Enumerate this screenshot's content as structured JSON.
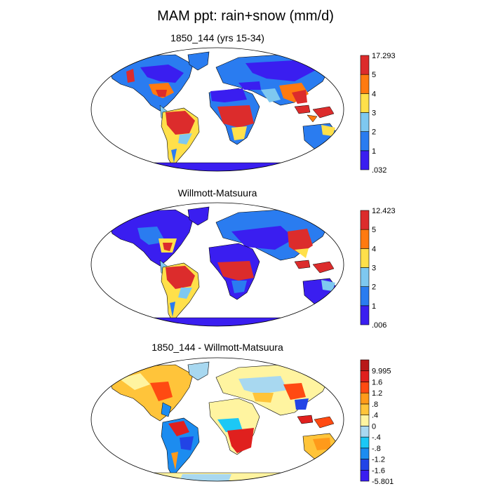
{
  "title": "MAM ppt: rain+snow (mm/d)",
  "panels": [
    {
      "title": "1850_144 (yrs 15-34)",
      "colorbar": {
        "colors": [
          "#3a1ef0",
          "#2a7cf0",
          "#7ec8f0",
          "#ffe04a",
          "#ff7a10",
          "#dc2c2c"
        ],
        "labels": [
          ".032",
          "1",
          "2",
          "3",
          "4",
          "5",
          "17.293"
        ]
      }
    },
    {
      "title": "Willmott-Matsuura",
      "colorbar": {
        "colors": [
          "#3a1ef0",
          "#2a7cf0",
          "#7ec8f0",
          "#ffe04a",
          "#ff7a10",
          "#dc2c2c"
        ],
        "labels": [
          ".006",
          "1",
          "2",
          "3",
          "4",
          "5",
          "12.423"
        ]
      }
    },
    {
      "title": "1850_144 - Willmott-Matsuura",
      "colorbar": {
        "colors": [
          "#3a1ef0",
          "#2244e6",
          "#1c8cf0",
          "#1cc8f5",
          "#a8d8f0",
          "#fff4a0",
          "#ffc43a",
          "#ff9a1a",
          "#ff4a12",
          "#e0201e",
          "#b81818"
        ],
        "labels": [
          "-5.801",
          "-1.6",
          "-1.2",
          "-.8",
          "-.4",
          "0",
          ".4",
          ".8",
          "1.2",
          "1.6",
          "9.995"
        ]
      }
    }
  ]
}
